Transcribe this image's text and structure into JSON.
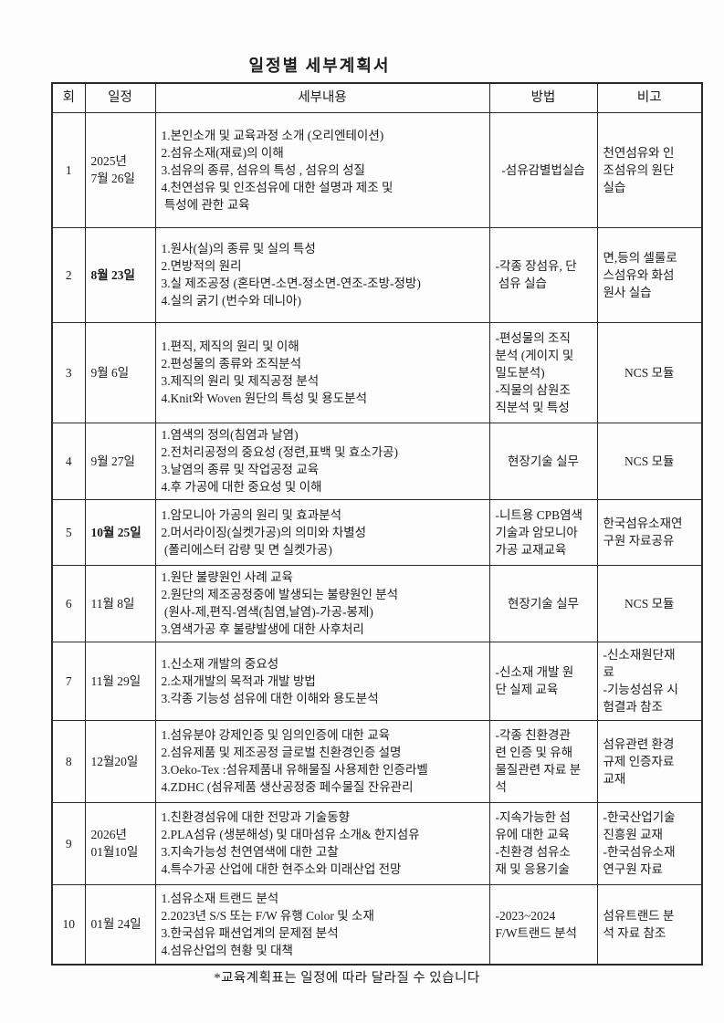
{
  "page": {
    "title": "일정별 세부계획서",
    "footnote": "*교육계획표는 일정에 따라 달라질 수 있습니다"
  },
  "table": {
    "headers": {
      "session": "회",
      "date": "일정",
      "content": "세부내용",
      "method": "방법",
      "note": "비고"
    },
    "rows": [
      {
        "no": "1",
        "date": [
          "2025년",
          "7월 26일"
        ],
        "date_bold": false,
        "content": [
          "1.본인소개 및 교육과정 소개 (오리엔테이션)",
          "2.섬유소재(재료)의 이해",
          "3.섬유의 종류, 섬유의 특성 , 섬유의 성질",
          "4.천연섬유 및 인조섬유에 대한 설명과 제조 및",
          " 특성에 관한 교육"
        ],
        "method": [
          "-섬유감별법실습"
        ],
        "note": [
          "천연섬유와 인",
          "조섬유의 원단",
          "실습"
        ]
      },
      {
        "no": "2",
        "date": [
          "8월 23일"
        ],
        "date_bold": true,
        "content": [
          "1.원사(실)의 종류 및 실의 특성",
          "2.면방적의 원리",
          "3.실 제조공정 (혼타면-소면-정소면-연조-조방-정방)",
          "4.실의 굵기 (번수와 데니아)"
        ],
        "method": [
          "-각종 장섬유, 단",
          " 섬유 실습"
        ],
        "note": [
          "면,등의 셀룰로",
          "스섬유와 화섬",
          "원사 실습"
        ]
      },
      {
        "no": "3",
        "date": [
          "9월 6일"
        ],
        "date_bold": false,
        "content": [
          "1.편직, 제직의 원리 및 이해",
          "2.편성물의 종류와 조직분석",
          "3.제직의 원리 및 제직공정 분석",
          "4.Knit와 Woven 원단의 특성 및 용도분석"
        ],
        "method": [
          "-편성물의 조직",
          "분석 (게이지 및",
          "밀도분석)",
          "-직물의 삼원조",
          "직분석 및 특성"
        ],
        "note": [
          "NCS 모듈"
        ]
      },
      {
        "no": "4",
        "date": [
          "9월 27일"
        ],
        "date_bold": false,
        "content": [
          "1.염색의 정의(침염과 날염)",
          "2.전처리공정의 중요성 (정련,표백 및 효소가공)",
          "3.날염의 종류 및 작업공정 교육",
          "4.후 가공에 대한 중요성 및 이해"
        ],
        "method": [
          "현장기술 실무"
        ],
        "note": [
          "NCS 모듈"
        ]
      },
      {
        "no": "5",
        "date": [
          "10월 25일"
        ],
        "date_bold": true,
        "content": [
          "1.암모니아 가공의 원리 및 효과분석",
          "2.머서라이징(실켓가공)의 의미와 차별성",
          " (폴리에스터 감량 및 면 실켓가공)"
        ],
        "method": [
          "-니트용 CPB염색",
          "기술과 암모니아",
          "가공 교재교육"
        ],
        "note": [
          "한국섬유소재연",
          "구원 자료공유"
        ]
      },
      {
        "no": "6",
        "date": [
          "11월 8일"
        ],
        "date_bold": false,
        "content": [
          "1.원단 불량원인 사례 교육",
          "2.원단의 제조공정중에 발생되는 불량원인 분석",
          " (원사-제,편직-염색(침염,날염)-가공-봉제)",
          "3.염색가공 후 불량발생에 대한 사후처리"
        ],
        "method": [
          "현장기술 실무"
        ],
        "note": [
          "NCS 모듈"
        ]
      },
      {
        "no": "7",
        "date": [
          "11월 29일"
        ],
        "date_bold": false,
        "content": [
          "1.신소재 개발의 중요성",
          "2.소재개발의 목적과 개발 방법",
          "3.각종 기능성 섬유에 대한 이해와 용도분석"
        ],
        "method": [
          "-신소재 개발 원",
          "단 실제 교육"
        ],
        "note": [
          "-신소재원단재",
          "료",
          "-기능성섬유 시",
          "험결과 참조"
        ]
      },
      {
        "no": "8",
        "date": [
          "12월20일"
        ],
        "date_bold": false,
        "content": [
          "1.섬유분야 강제인증 및 임의인증에 대한 교육",
          "2.섬유제품 및 제조공정 글로벌 친환경인증 설명",
          "3.Oeko-Tex :섬유제품내 유해물질 사용제한 인증라벨",
          "4.ZDHC (섬유제품 생산공정중 페수물질 잔유관리"
        ],
        "method": [
          "-각종 친환경관",
          "련 인증 및 유해",
          "물질관련 자료 분",
          "석"
        ],
        "note": [
          "섬유관련 환경",
          "규제 인증자료",
          "교재"
        ]
      },
      {
        "no": "9",
        "date": [
          "2026년",
          "01월10일"
        ],
        "date_bold": false,
        "content": [
          "1.친환경섬유에 대한 전망과 기술동향",
          "2.PLA섬유 (생분해성) 및 대마섬유 소개& 한지섬유",
          "3.지속가능성 천연염색에 대한 고찰",
          "4.특수가공 산업에 대한 현주소와 미래산업 전망"
        ],
        "method": [
          "-지속가능한 섬",
          "유에 대한 교육",
          "-친환경 섬유소",
          "재 및 응용기술"
        ],
        "note": [
          "-한국산업기술",
          "진흥원 교재",
          "-한국섬유소재",
          "연구원 자료"
        ]
      },
      {
        "no": "10",
        "date": [
          "01월 24일"
        ],
        "date_bold": false,
        "content": [
          "1.섬유소재 트랜드 분석",
          "2.2023년 S/S 또는 F/W 유행 Color 및 소재",
          "3.한국섬유 패션업계의 문제점 분석",
          "4.섬유산업의 현황 및 대책"
        ],
        "method": [
          "-2023~2024",
          "F/W트랜드 분석"
        ],
        "note": [
          "섬유트랜드 분",
          "석 자료 참조"
        ]
      }
    ]
  }
}
